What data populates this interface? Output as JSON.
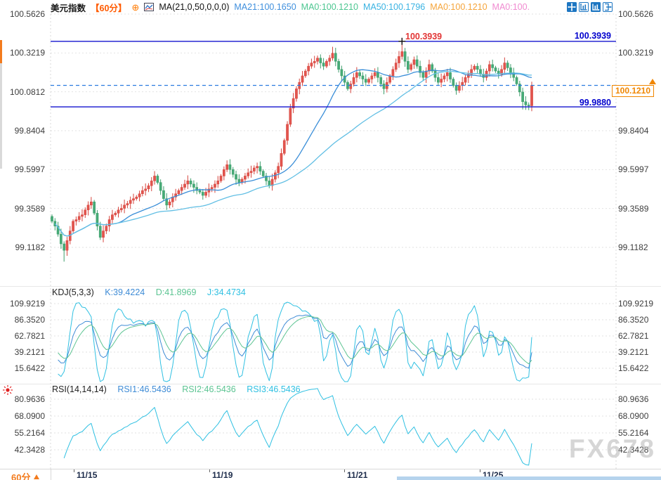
{
  "header": {
    "title": "美元指数",
    "timeframe_badge": "【60分】",
    "collapse_icon_glyph": "⊕",
    "indicator_formula": "MA(21,0,50,0,0,0)",
    "ma_values": [
      {
        "label": "MA21:100.1650",
        "color": "#3f8fdd"
      },
      {
        "label": "MA0:100.1210",
        "color": "#4cc690"
      },
      {
        "label": "MA50:100.1796",
        "color": "#38b2e2"
      },
      {
        "label": "MA0:100.1210",
        "color": "#f5a43a"
      },
      {
        "label": "MA0:100.",
        "color": "#f08ad0"
      }
    ],
    "toolbar_icons": [
      "pan",
      "fit-vertical-axis",
      "fit-horizontal-axis",
      "exit-fullscreen"
    ],
    "badge_color": "#ff5a00",
    "collapse_icon_color": "#ff7a00"
  },
  "main_panel": {
    "axis_labels": [
      "100.5626",
      "100.3219",
      "100.0812",
      "99.8404",
      "99.5997",
      "99.3589",
      "99.1182"
    ],
    "resistance": {
      "value": "100.3939",
      "peak_label_color": "#e23434",
      "right_label_color": "#0000cd"
    },
    "support": {
      "value": "99.9880",
      "color": "#0000cd"
    },
    "last_price": {
      "value": "100.1210",
      "color": "#f08600"
    }
  },
  "kdj_panel": {
    "formula": "KDJ(5,3,3)",
    "k": {
      "label": "K:39.4224",
      "color": "#3f8cd6"
    },
    "d": {
      "label": "D:41.8969",
      "color": "#5cc492"
    },
    "j": {
      "label": "J:34.4734",
      "color": "#2fc0e2"
    },
    "axis_labels": [
      "109.9219",
      "86.3520",
      "62.7821",
      "39.2121",
      "15.6422"
    ]
  },
  "rsi_panel": {
    "formula": "RSI(14,14,14)",
    "rsi1": {
      "label": "RSI1:46.5436",
      "color": "#3f8cd6"
    },
    "rsi2": {
      "label": "RSI2:46.5436",
      "color": "#5cc492"
    },
    "rsi3": {
      "label": "RSI3:46.5436",
      "color": "#2fc0e2"
    },
    "axis_labels": [
      "80.9636",
      "68.0900",
      "55.2164",
      "42.3428"
    ]
  },
  "bottom_bar": {
    "timeframe": "60分",
    "timeframe_color": "#f37b1d",
    "dates": [
      "11/15",
      "11/19",
      "11/21",
      "11/25"
    ]
  },
  "watermark": "FX678",
  "colors": {
    "up_candle": "#e2554e",
    "up_candle_stroke": "#d6453e",
    "down_candle": "#47ab77",
    "down_candle_stroke": "#3d9e6c",
    "level_line": "#1414cf",
    "dashed_line": "#2b7de0",
    "ma21": "#3a8ed8",
    "ma50": "#62bfe4",
    "grid": "#e2e2e2"
  },
  "chart_data": {
    "type": "candlestick",
    "symbol": "美元指数",
    "timeframe": "60分",
    "title": "美元指数 60分",
    "x_dates": [
      "11/15",
      "11/19",
      "11/21",
      "11/25"
    ],
    "price_axis_ticks": [
      100.5626,
      100.3219,
      100.0812,
      99.8404,
      99.5997,
      99.3589,
      99.1182
    ],
    "levels": {
      "resistance": 100.3939,
      "support": 99.988,
      "last_price": 100.121
    },
    "first_open": 99.31,
    "closes": [
      99.28,
      99.25,
      99.2,
      99.14,
      99.1,
      99.16,
      99.22,
      99.28,
      99.29,
      99.31,
      99.32,
      99.35,
      99.38,
      99.4,
      99.33,
      99.25,
      99.18,
      99.22,
      99.25,
      99.29,
      99.32,
      99.33,
      99.35,
      99.36,
      99.38,
      99.39,
      99.41,
      99.42,
      99.43,
      99.45,
      99.47,
      99.48,
      99.5,
      99.53,
      99.56,
      99.52,
      99.47,
      99.42,
      99.38,
      99.4,
      99.43,
      99.45,
      99.47,
      99.49,
      99.51,
      99.53,
      99.51,
      99.49,
      99.47,
      99.46,
      99.44,
      99.46,
      99.48,
      99.49,
      99.51,
      99.53,
      99.56,
      99.6,
      99.63,
      99.6,
      99.57,
      99.54,
      99.52,
      99.54,
      99.56,
      99.58,
      99.59,
      99.61,
      99.62,
      99.59,
      99.56,
      99.53,
      99.5,
      99.54,
      99.58,
      99.62,
      99.7,
      99.78,
      99.88,
      99.98,
      100.04,
      100.1,
      100.14,
      100.18,
      100.21,
      100.24,
      100.26,
      100.27,
      100.29,
      100.26,
      100.24,
      100.27,
      100.29,
      100.32,
      100.27,
      100.22,
      100.18,
      100.14,
      100.1,
      100.13,
      100.17,
      100.2,
      100.18,
      100.16,
      100.14,
      100.16,
      100.18,
      100.2,
      100.17,
      100.13,
      100.1,
      100.14,
      100.18,
      100.22,
      100.26,
      100.3,
      100.33,
      100.27,
      100.22,
      100.25,
      100.28,
      100.24,
      100.2,
      100.17,
      100.21,
      100.25,
      100.21,
      100.17,
      100.14,
      100.16,
      100.18,
      100.2,
      100.16,
      100.12,
      100.09,
      100.12,
      100.14,
      100.17,
      100.19,
      100.22,
      100.24,
      100.22,
      100.19,
      100.17,
      100.21,
      100.25,
      100.23,
      100.21,
      100.19,
      100.22,
      100.26,
      100.23,
      100.2,
      100.17,
      100.13,
      100.08,
      100.02,
      100.0,
      99.995,
      100.121
    ],
    "wick_overrides": {
      "4": {
        "low": 99.03
      },
      "93": {
        "high": 100.36
      },
      "116": {
        "high": 100.3939
      },
      "156": {
        "low": 99.972
      },
      "158": {
        "low": 99.968
      }
    },
    "indicators": {
      "ma": {
        "periods": [
          21,
          50
        ],
        "ma21_last": 100.165,
        "ma50_last": 100.1796
      },
      "kdj": {
        "params": [
          5,
          3,
          3
        ],
        "k_last": 39.4224,
        "d_last": 41.8969,
        "j_last": 34.4734,
        "axis_ticks": [
          109.9219,
          86.352,
          62.7821,
          39.2121,
          15.6422
        ]
      },
      "rsi": {
        "params": [
          14,
          14,
          14
        ],
        "rsi1_last": 46.5436,
        "rsi2_last": 46.5436,
        "rsi3_last": 46.5436,
        "axis_ticks": [
          80.9636,
          68.09,
          55.2164,
          42.3428
        ]
      }
    }
  }
}
